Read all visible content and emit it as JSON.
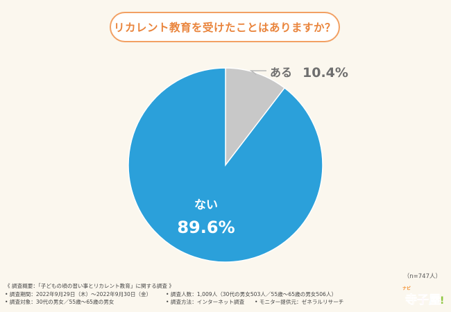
{
  "question": "リカレント教育を受けたことはありますか？",
  "sample_size": "（n=747人）",
  "chart_data": {
    "type": "pie",
    "slices": [
      {
        "label": "ある",
        "value": 10.4,
        "value_label": "10.4%",
        "color": "#C8C8C8"
      },
      {
        "label": "ない",
        "value": 89.6,
        "value_label": "89.6%",
        "color": "#2BA0DA"
      }
    ],
    "start_angle": "12 o'clock",
    "direction": "clockwise"
  },
  "footer": {
    "summary_label": "《 調査概要：「子どもの頃の習い事とリカレント教育」に関する調査 》",
    "period": "• 調査期間：2022年9月29日（木）〜2022年9月30日（金）",
    "respondents": "• 調査人数：1,009人（30代の男女503人／55歳〜65歳の男女506人）",
    "target": "• 調査対象：30代の男女／55歳〜65歳の男女",
    "method": "• 調査方法：インターネット調査",
    "provider": "• モニター提供元：ゼネラルリサーチ"
  },
  "logo": {
    "text": "寺子屋",
    "small_text": "ナビ",
    "colors": [
      "#F28C28",
      "#E73C8C",
      "#3BA8E0",
      "#8CC63F"
    ]
  }
}
